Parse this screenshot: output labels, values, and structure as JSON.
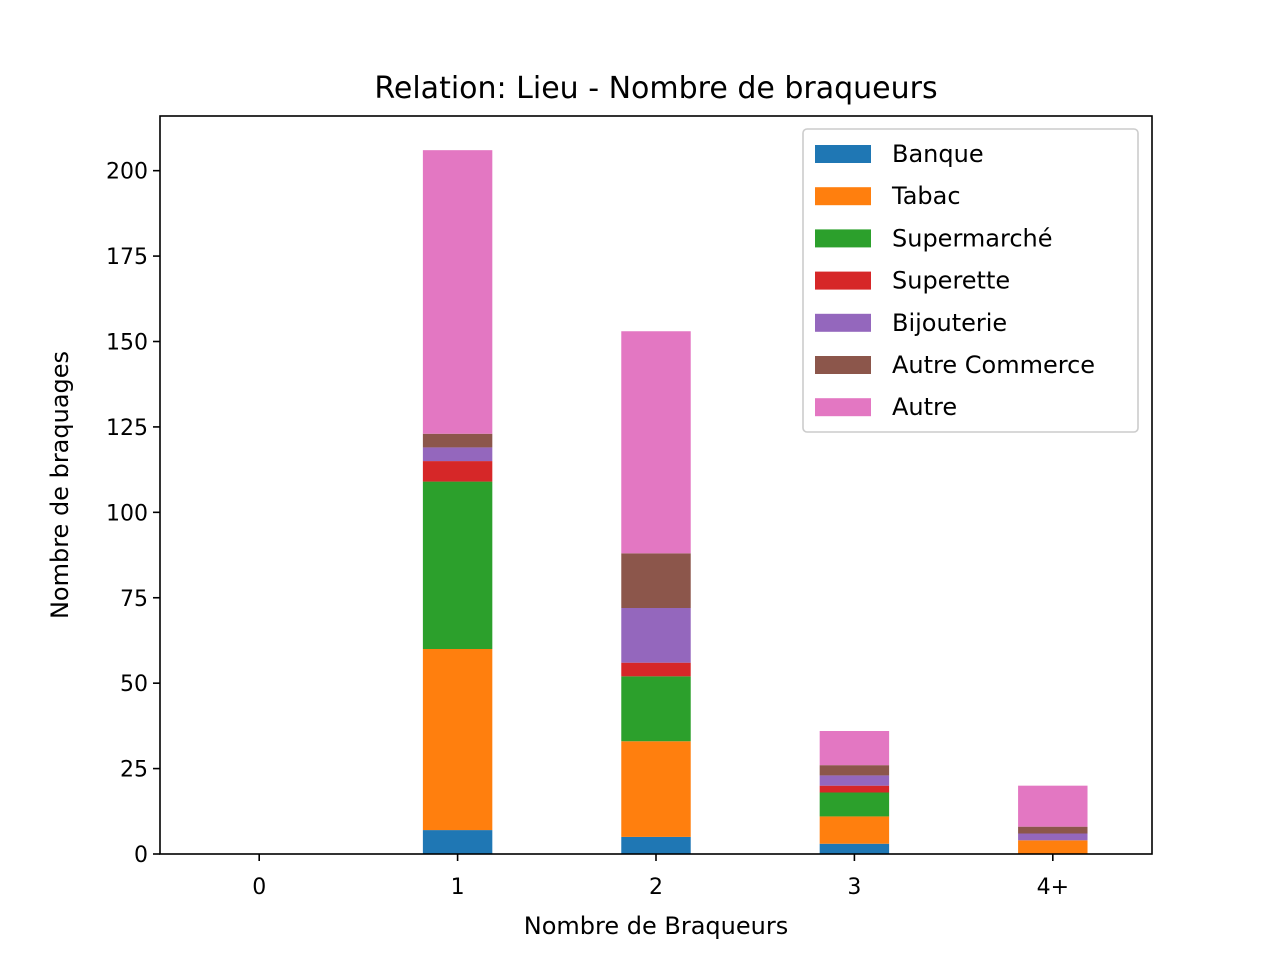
{
  "chart_data": {
    "type": "bar",
    "stacked": true,
    "title": "Relation: Lieu - Nombre de braqueurs",
    "xlabel": "Nombre de Braqueurs",
    "ylabel": "Nombre de braquages",
    "categories": [
      "0",
      "1",
      "2",
      "3",
      "4+"
    ],
    "ylim": [
      0,
      216
    ],
    "yticks": [
      0,
      25,
      50,
      75,
      100,
      125,
      150,
      175,
      200
    ],
    "grid": false,
    "legend_position": "top-right",
    "series": [
      {
        "name": "Banque",
        "color": "#1f77b4",
        "values": [
          0,
          7,
          5,
          3,
          0
        ]
      },
      {
        "name": "Tabac",
        "color": "#ff7f0e",
        "values": [
          0,
          53,
          28,
          8,
          4
        ]
      },
      {
        "name": "Supermarché",
        "color": "#2ca02c",
        "values": [
          0,
          49,
          19,
          7,
          0
        ]
      },
      {
        "name": "Superette",
        "color": "#d62728",
        "values": [
          0,
          6,
          4,
          2,
          0
        ]
      },
      {
        "name": "Bijouterie",
        "color": "#9467bd",
        "values": [
          0,
          4,
          16,
          3,
          2
        ]
      },
      {
        "name": "Autre Commerce",
        "color": "#8c564b",
        "values": [
          0,
          4,
          16,
          3,
          2
        ]
      },
      {
        "name": "Autre",
        "color": "#e377c2",
        "values": [
          0,
          83,
          65,
          10,
          12
        ]
      }
    ]
  }
}
